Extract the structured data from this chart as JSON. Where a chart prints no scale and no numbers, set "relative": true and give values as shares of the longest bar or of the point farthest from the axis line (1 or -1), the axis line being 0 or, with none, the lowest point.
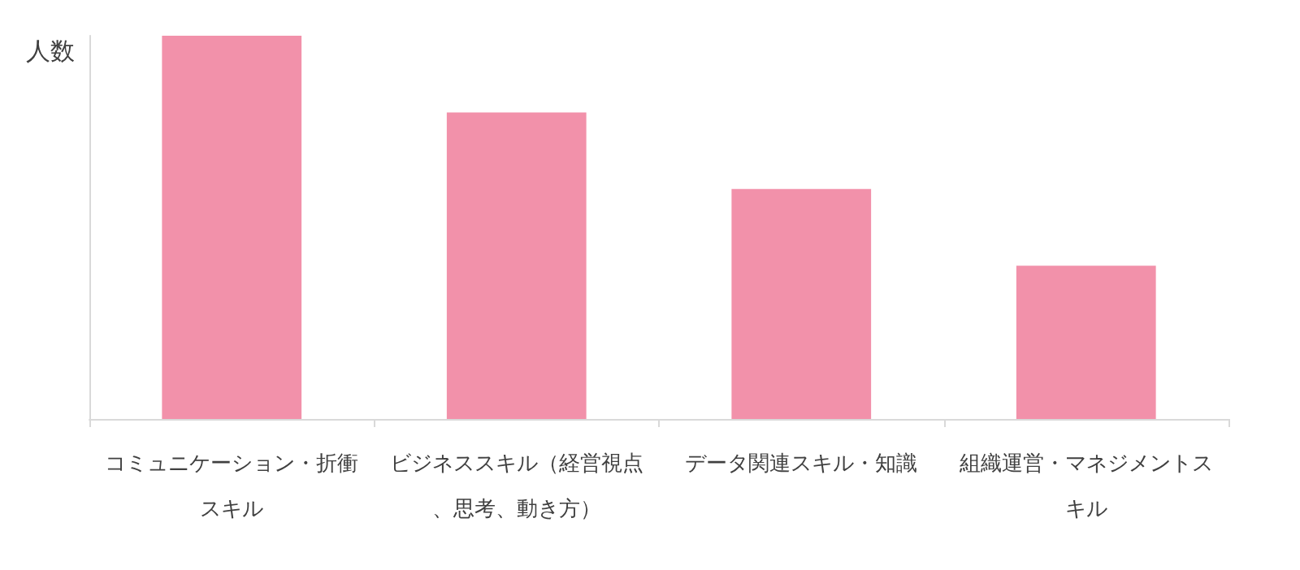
{
  "chart_data": {
    "type": "bar",
    "ylabel": "人数",
    "relative": true,
    "categories": [
      "コミュニケーション・折衝スキル",
      "ビジネススキル（経営視点、思考、動き方）",
      "データ関連スキル・知識",
      "組織運営・マネジメントスキル"
    ],
    "values": [
      1,
      0.8,
      0.6,
      0.4
    ],
    "color": "#f291aa",
    "grid": false
  }
}
